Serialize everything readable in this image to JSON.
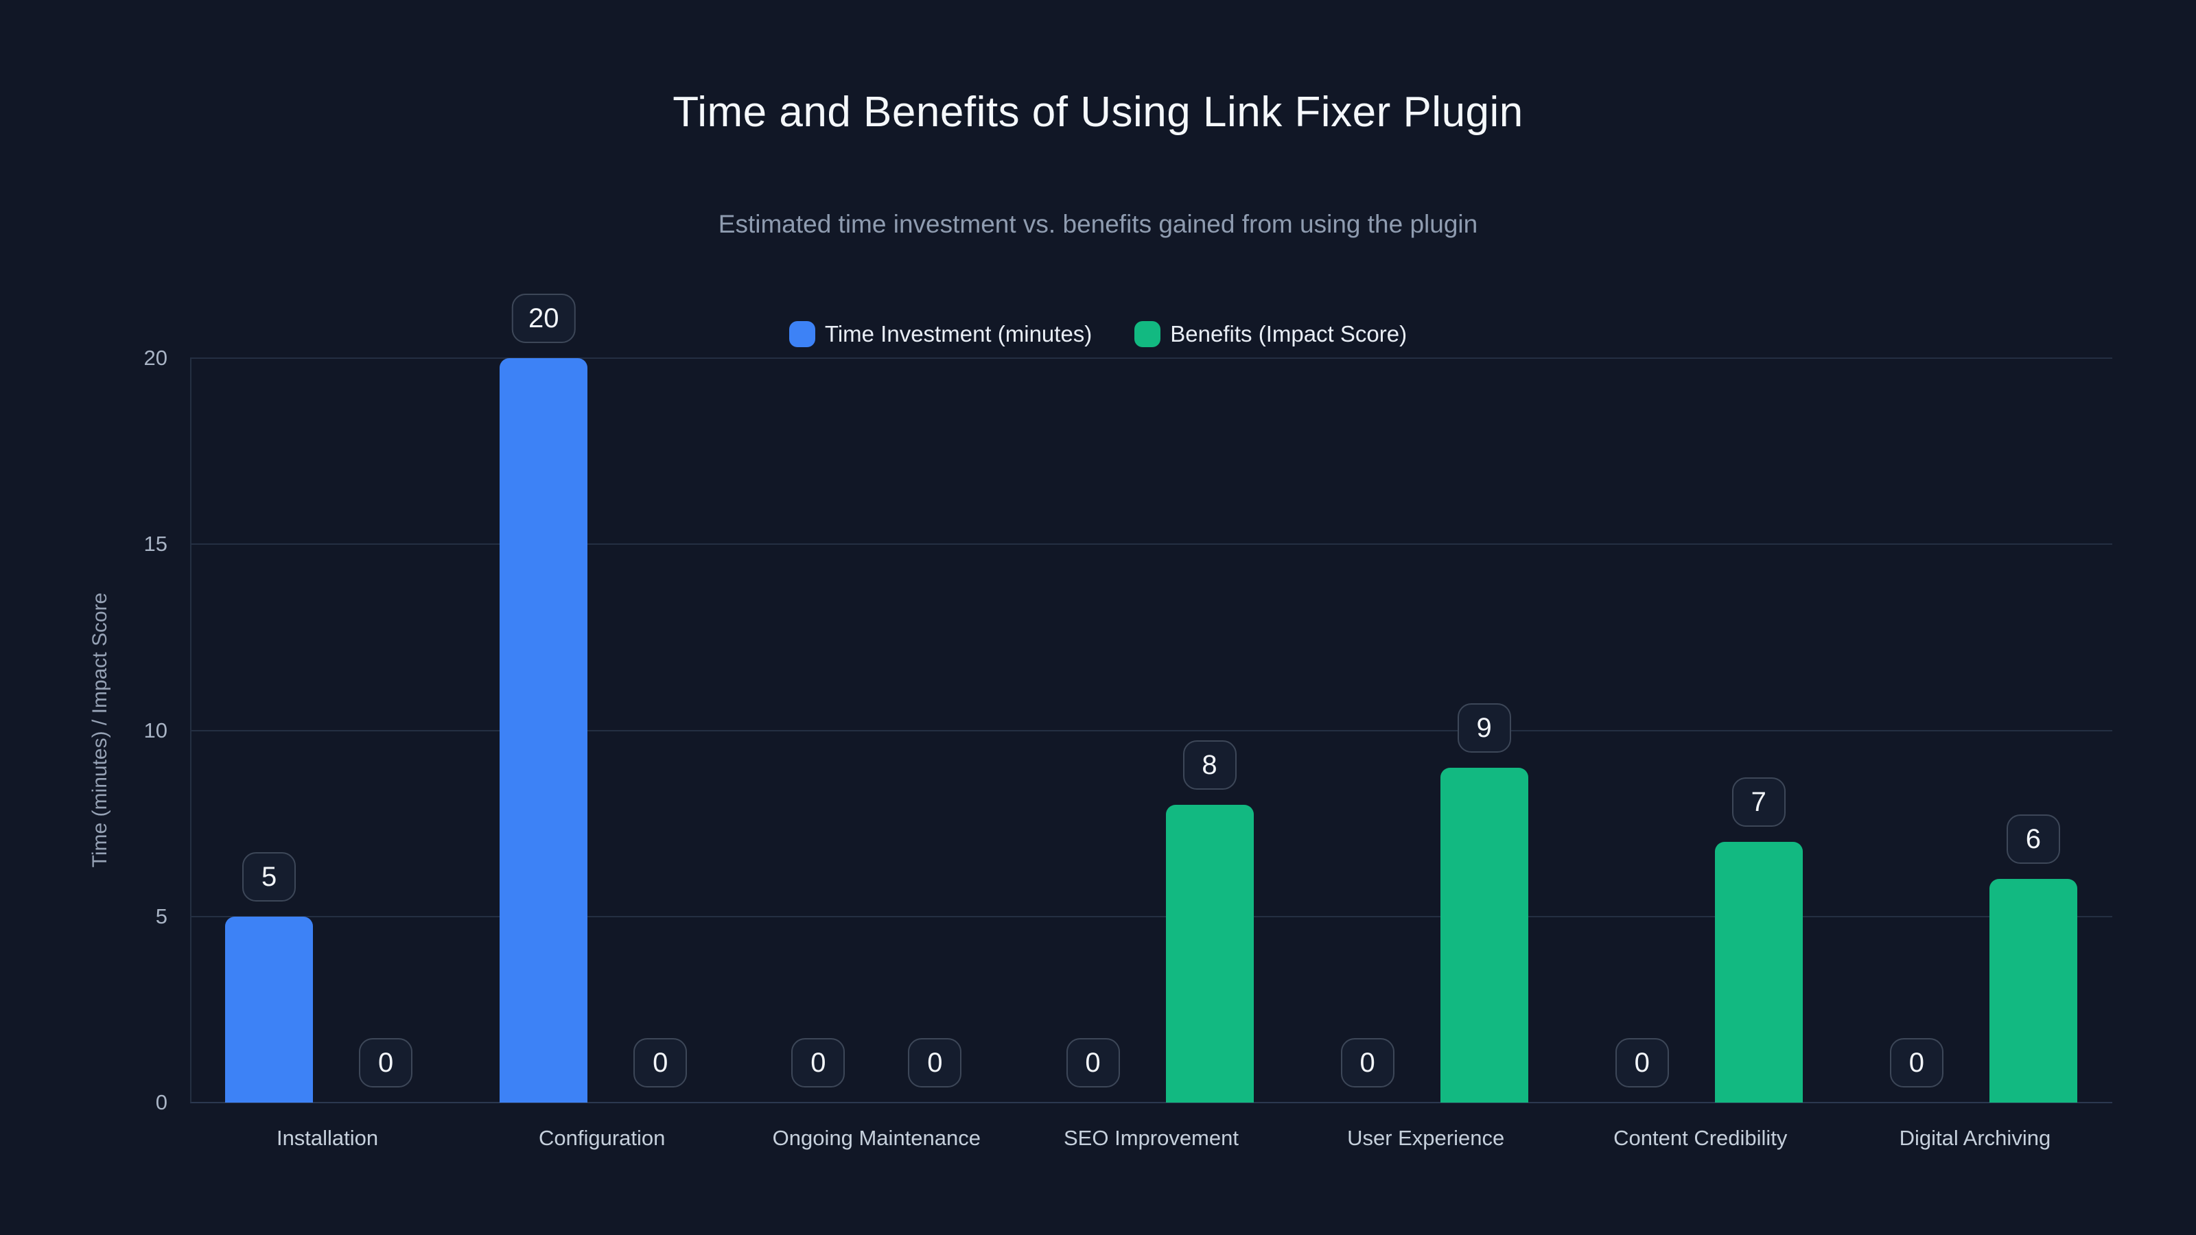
{
  "chart_data": {
    "type": "bar",
    "title": "Time and Benefits of Using Link Fixer Plugin",
    "subtitle": "Estimated time investment vs. benefits gained from using the plugin",
    "ylabel": "Time (minutes) / Impact Score",
    "xlabel": "",
    "categories": [
      "Installation",
      "Configuration",
      "Ongoing Maintenance",
      "SEO Improvement",
      "User Experience",
      "Content Credibility",
      "Digital Archiving"
    ],
    "series": [
      {
        "name": "Time Investment (minutes)",
        "color": "#3d82f6",
        "values": [
          5,
          20,
          0,
          0,
          0,
          0,
          0
        ]
      },
      {
        "name": "Benefits (Impact Score)",
        "color": "#12b981",
        "values": [
          0,
          0,
          0,
          8,
          9,
          7,
          6
        ]
      }
    ],
    "ylim": [
      0,
      20
    ],
    "yticks": [
      0,
      5,
      10,
      15,
      20
    ],
    "grid": true,
    "legend_position": "top",
    "value_labels": true
  },
  "colors": {
    "background": "#111726",
    "grid": "#242f42",
    "baseline": "#2c3850",
    "tick_text": "#a9b4c5",
    "category_text": "#c6d0dc",
    "axis_label_text": "#96a2b5",
    "title_text": "#f5f8fb",
    "subtitle_text": "#8f9cb0",
    "legend_text": "#e9eef5",
    "badge_bg": "#151d2e",
    "badge_border": "#3d4758",
    "badge_text": "#f3f6fa",
    "series_blue": "#3d82f6",
    "series_green": "#12b981"
  }
}
